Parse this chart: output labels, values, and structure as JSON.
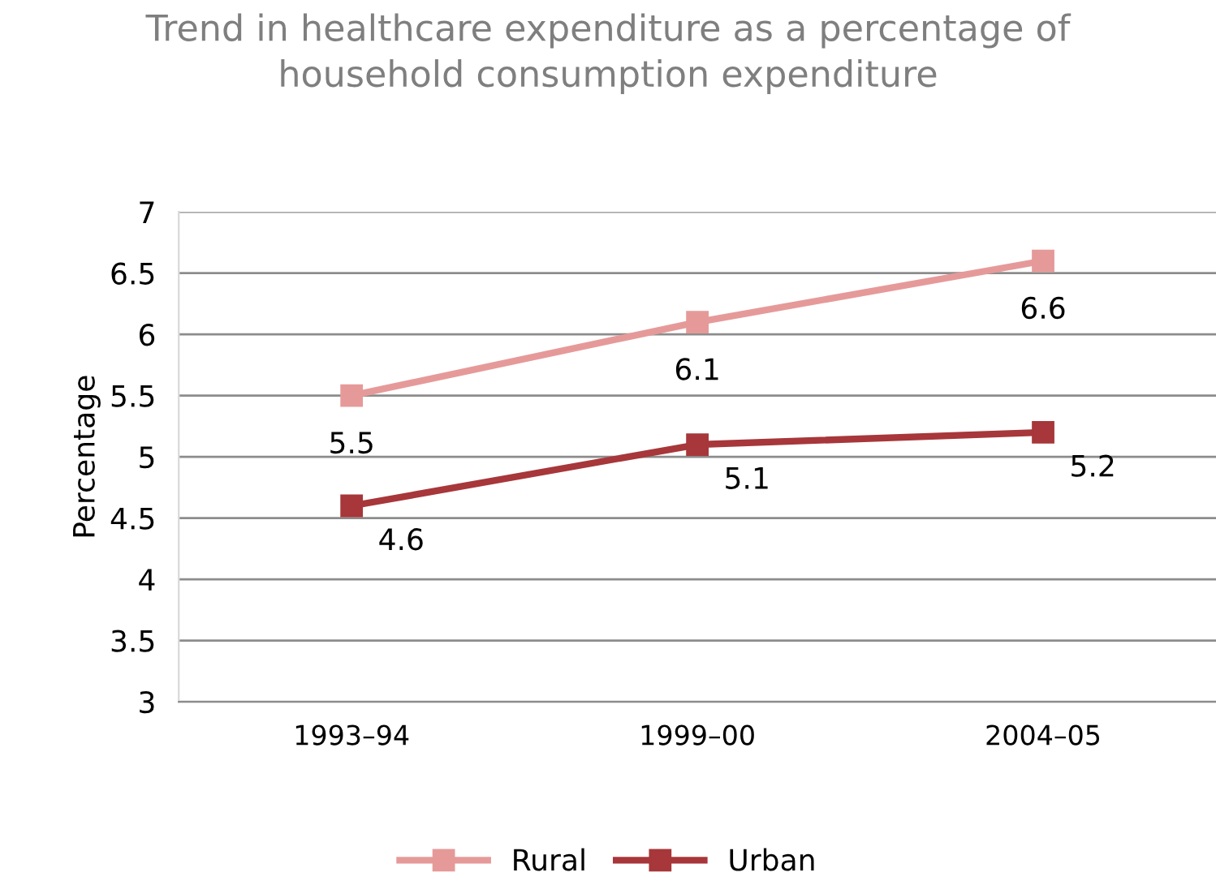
{
  "chart_data": {
    "type": "line",
    "title": "Trend in healthcare expenditure as a percentage of\nhousehold consumption expenditure",
    "ylabel": "Percentage",
    "categories": [
      "1993–94",
      "1999–00",
      "2004–05"
    ],
    "series": [
      {
        "name": "Rural",
        "color": "#e59a99",
        "values": [
          5.5,
          6.1,
          6.6
        ]
      },
      {
        "name": "Urban",
        "color": "#a7373a",
        "values": [
          4.6,
          5.1,
          5.2
        ]
      }
    ],
    "ylim": [
      3,
      7
    ],
    "yticks": [
      3,
      3.5,
      4,
      4.5,
      5,
      5.5,
      6,
      6.5,
      7
    ],
    "grid": "y",
    "legend": "bottom",
    "marker": "square",
    "line_style": "solid",
    "data_labels": true
  }
}
